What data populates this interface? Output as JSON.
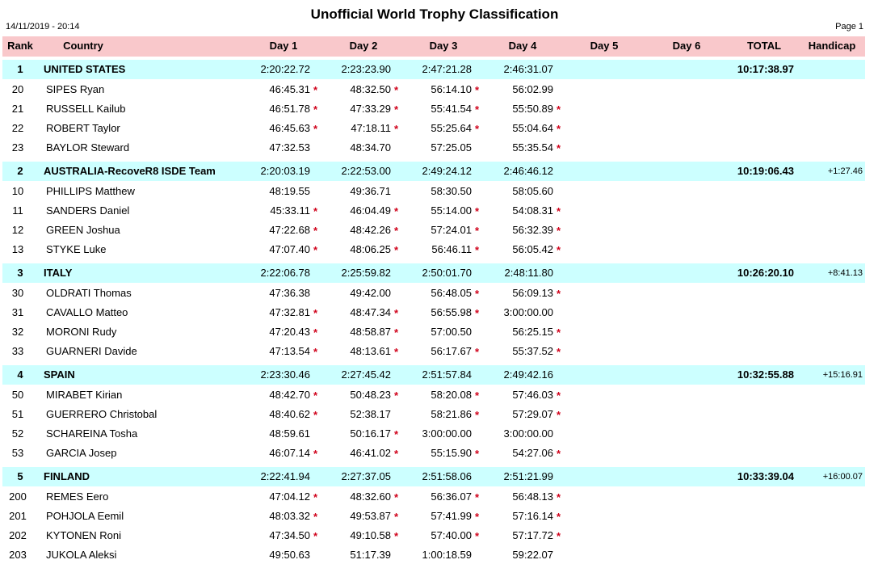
{
  "header": {
    "title": "Unofficial World Trophy Classification",
    "timestamp": "14/11/2019 - 20:14",
    "page": "Page 1"
  },
  "table": {
    "columns": [
      "Rank",
      "Country",
      "Day 1",
      "Day 2",
      "Day 3",
      "Day 4",
      "Day 5",
      "Day 6",
      "TOTAL",
      "Handicap"
    ],
    "teams": [
      {
        "rank": "1",
        "country": "UNITED STATES",
        "days": [
          "2:20:22.72",
          "2:23:23.90",
          "2:47:21.28",
          "2:46:31.07"
        ],
        "total": "10:17:38.97",
        "riders": [
          {
            "number": "20",
            "name": "SIPES Ryan",
            "days": [
              {
                "time": "46:45.31",
                "flag": "*"
              },
              {
                "time": "48:32.50",
                "flag": "*"
              },
              {
                "time": "56:14.10",
                "flag": "*"
              },
              {
                "time": "56:02.99"
              }
            ]
          },
          {
            "number": "21",
            "name": "RUSSELL Kailub",
            "days": [
              {
                "time": "46:51.78",
                "flag": "*"
              },
              {
                "time": "47:33.29",
                "flag": "*"
              },
              {
                "time": "55:41.54",
                "flag": "*"
              },
              {
                "time": "55:50.89",
                "flag": "*"
              }
            ]
          },
          {
            "number": "22",
            "name": "ROBERT Taylor",
            "days": [
              {
                "time": "46:45.63",
                "flag": "*"
              },
              {
                "time": "47:18.11",
                "flag": "*"
              },
              {
                "time": "55:25.64",
                "flag": "*"
              },
              {
                "time": "55:04.64",
                "flag": "*"
              }
            ]
          },
          {
            "number": "23",
            "name": "BAYLOR Steward",
            "days": [
              {
                "time": "47:32.53"
              },
              {
                "time": "48:34.70"
              },
              {
                "time": "57:25.05"
              },
              {
                "time": "55:35.54",
                "flag": "*"
              }
            ]
          }
        ]
      },
      {
        "rank": "2",
        "country": "AUSTRALIA-RecoveR8 ISDE Team",
        "days": [
          "2:20:03.19",
          "2:22:53.00",
          "2:49:24.12",
          "2:46:46.12"
        ],
        "total": "10:19:06.43",
        "handicap": "+1:27.46",
        "riders": [
          {
            "number": "10",
            "name": "PHILLIPS Matthew",
            "days": [
              {
                "time": "48:19.55"
              },
              {
                "time": "49:36.71"
              },
              {
                "time": "58:30.50"
              },
              {
                "time": "58:05.60"
              }
            ]
          },
          {
            "number": "11",
            "name": "SANDERS Daniel",
            "days": [
              {
                "time": "45:33.11",
                "flag": "*"
              },
              {
                "time": "46:04.49",
                "flag": "*"
              },
              {
                "time": "55:14.00",
                "flag": "*"
              },
              {
                "time": "54:08.31",
                "flag": "*"
              }
            ]
          },
          {
            "number": "12",
            "name": "GREEN Joshua",
            "days": [
              {
                "time": "47:22.68",
                "flag": "*"
              },
              {
                "time": "48:42.26",
                "flag": "*"
              },
              {
                "time": "57:24.01",
                "flag": "*"
              },
              {
                "time": "56:32.39",
                "flag": "*"
              }
            ]
          },
          {
            "number": "13",
            "name": "STYKE Luke",
            "days": [
              {
                "time": "47:07.40",
                "flag": "*"
              },
              {
                "time": "48:06.25",
                "flag": "*"
              },
              {
                "time": "56:46.11",
                "flag": "*"
              },
              {
                "time": "56:05.42",
                "flag": "*"
              }
            ]
          }
        ]
      },
      {
        "rank": "3",
        "country": "ITALY",
        "days": [
          "2:22:06.78",
          "2:25:59.82",
          "2:50:01.70",
          "2:48:11.80"
        ],
        "total": "10:26:20.10",
        "handicap": "+8:41.13",
        "riders": [
          {
            "number": "30",
            "name": "OLDRATI Thomas",
            "days": [
              {
                "time": "47:36.38"
              },
              {
                "time": "49:42.00"
              },
              {
                "time": "56:48.05",
                "flag": "*"
              },
              {
                "time": "56:09.13",
                "flag": "*"
              }
            ]
          },
          {
            "number": "31",
            "name": "CAVALLO Matteo",
            "days": [
              {
                "time": "47:32.81",
                "flag": "*"
              },
              {
                "time": "48:47.34",
                "flag": "*"
              },
              {
                "time": "56:55.98",
                "flag": "*"
              },
              {
                "time": "3:00:00.00"
              }
            ]
          },
          {
            "number": "32",
            "name": "MORONI Rudy",
            "days": [
              {
                "time": "47:20.43",
                "flag": "*"
              },
              {
                "time": "48:58.87",
                "flag": "*"
              },
              {
                "time": "57:00.50"
              },
              {
                "time": "56:25.15",
                "flag": "*"
              }
            ]
          },
          {
            "number": "33",
            "name": "GUARNERI Davide",
            "days": [
              {
                "time": "47:13.54",
                "flag": "*"
              },
              {
                "time": "48:13.61",
                "flag": "*"
              },
              {
                "time": "56:17.67",
                "flag": "*"
              },
              {
                "time": "55:37.52",
                "flag": "*"
              }
            ]
          }
        ]
      },
      {
        "rank": "4",
        "country": "SPAIN",
        "days": [
          "2:23:30.46",
          "2:27:45.42",
          "2:51:57.84",
          "2:49:42.16"
        ],
        "total": "10:32:55.88",
        "handicap": "+15:16.91",
        "riders": [
          {
            "number": "50",
            "name": "MIRABET Kirian",
            "days": [
              {
                "time": "48:42.70",
                "flag": "*"
              },
              {
                "time": "50:48.23",
                "flag": "*"
              },
              {
                "time": "58:20.08",
                "flag": "*"
              },
              {
                "time": "57:46.03",
                "flag": "*"
              }
            ]
          },
          {
            "number": "51",
            "name": "GUERRERO Christobal",
            "days": [
              {
                "time": "48:40.62",
                "flag": "*"
              },
              {
                "time": "52:38.17"
              },
              {
                "time": "58:21.86",
                "flag": "*"
              },
              {
                "time": "57:29.07",
                "flag": "*"
              }
            ]
          },
          {
            "number": "52",
            "name": "SCHAREINA Tosha",
            "days": [
              {
                "time": "48:59.61"
              },
              {
                "time": "50:16.17",
                "flag": "*"
              },
              {
                "time": "3:00:00.00"
              },
              {
                "time": "3:00:00.00"
              }
            ]
          },
          {
            "number": "53",
            "name": "GARCIA Josep",
            "days": [
              {
                "time": "46:07.14",
                "flag": "*"
              },
              {
                "time": "46:41.02",
                "flag": "*"
              },
              {
                "time": "55:15.90",
                "flag": "*"
              },
              {
                "time": "54:27.06",
                "flag": "*"
              }
            ]
          }
        ]
      },
      {
        "rank": "5",
        "country": "FINLAND",
        "days": [
          "2:22:41.94",
          "2:27:37.05",
          "2:51:58.06",
          "2:51:21.99"
        ],
        "total": "10:33:39.04",
        "handicap": "+16:00.07",
        "riders": [
          {
            "number": "200",
            "name": "REMES Eero",
            "days": [
              {
                "time": "47:04.12",
                "flag": "*"
              },
              {
                "time": "48:32.60",
                "flag": "*"
              },
              {
                "time": "56:36.07",
                "flag": "*"
              },
              {
                "time": "56:48.13",
                "flag": "*"
              }
            ]
          },
          {
            "number": "201",
            "name": "POHJOLA Eemil",
            "days": [
              {
                "time": "48:03.32",
                "flag": "*"
              },
              {
                "time": "49:53.87",
                "flag": "*"
              },
              {
                "time": "57:41.99",
                "flag": "*"
              },
              {
                "time": "57:16.14",
                "flag": "*"
              }
            ]
          },
          {
            "number": "202",
            "name": "KYTONEN Roni",
            "days": [
              {
                "time": "47:34.50",
                "flag": "*"
              },
              {
                "time": "49:10.58",
                "flag": "*"
              },
              {
                "time": "57:40.00",
                "flag": "*"
              },
              {
                "time": "57:17.72",
                "flag": "*"
              }
            ]
          },
          {
            "number": "203",
            "name": "JUKOLA Aleksi",
            "days": [
              {
                "time": "49:50.63"
              },
              {
                "time": "51:17.39"
              },
              {
                "time": "1:00:18.59"
              },
              {
                "time": "59:22.07"
              }
            ]
          }
        ]
      }
    ]
  }
}
